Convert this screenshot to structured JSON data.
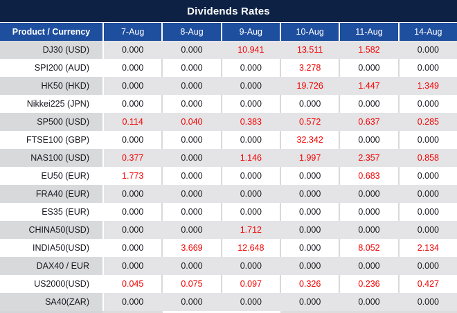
{
  "title": "Dividends Rates",
  "table": {
    "header": [
      "Product / Currency",
      "7-Aug",
      "8-Aug",
      "9-Aug",
      "10-Aug",
      "11-Aug",
      "14-Aug"
    ],
    "rows": [
      {
        "product": "DJ30 (USD)",
        "values": [
          "0.000",
          "0.000",
          "10.941",
          "13.511",
          "1.582",
          "0.000"
        ]
      },
      {
        "product": "SPI200 (AUD)",
        "values": [
          "0.000",
          "0.000",
          "0.000",
          "3.278",
          "0.000",
          "0.000"
        ]
      },
      {
        "product": "HK50 (HKD)",
        "values": [
          "0.000",
          "0.000",
          "0.000",
          "19.726",
          "1.447",
          "1.349"
        ]
      },
      {
        "product": "Nikkei225 (JPN)",
        "values": [
          "0.000",
          "0.000",
          "0.000",
          "0.000",
          "0.000",
          "0.000"
        ]
      },
      {
        "product": "SP500 (USD)",
        "values": [
          "0.114",
          "0.040",
          "0.383",
          "0.572",
          "0.637",
          "0.285"
        ]
      },
      {
        "product": "FTSE100 (GBP)",
        "values": [
          "0.000",
          "0.000",
          "0.000",
          "32.342",
          "0.000",
          "0.000"
        ]
      },
      {
        "product": "NAS100 (USD)",
        "values": [
          "0.377",
          "0.000",
          "1.146",
          "1.997",
          "2.357",
          "0.858"
        ]
      },
      {
        "product": "EU50 (EUR)",
        "values": [
          "1.773",
          "0.000",
          "0.000",
          "0.000",
          "0.683",
          "0.000"
        ]
      },
      {
        "product": "FRA40 (EUR)",
        "values": [
          "0.000",
          "0.000",
          "0.000",
          "0.000",
          "0.000",
          "0.000"
        ]
      },
      {
        "product": "ES35 (EUR)",
        "values": [
          "0.000",
          "0.000",
          "0.000",
          "0.000",
          "0.000",
          "0.000"
        ]
      },
      {
        "product": "CHINA50(USD)",
        "values": [
          "0.000",
          "0.000",
          "1.712",
          "0.000",
          "0.000",
          "0.000"
        ]
      },
      {
        "product": "INDIA50(USD)",
        "values": [
          "0.000",
          "3.669",
          "12.648",
          "0.000",
          "8.052",
          "2.134"
        ]
      },
      {
        "product": "DAX40 / EUR",
        "values": [
          "0.000",
          "0.000",
          "0.000",
          "0.000",
          "0.000",
          "0.000"
        ]
      },
      {
        "product": "US2000(USD)",
        "values": [
          "0.045",
          "0.075",
          "0.097",
          "0.326",
          "0.236",
          "0.427"
        ]
      },
      {
        "product": "SA40(ZAR)",
        "values": [
          "0.000",
          "0.000",
          "0.000",
          "0.000",
          "0.000",
          "0.000"
        ]
      }
    ]
  },
  "colors": {
    "title_bg": "#0d2145",
    "header_bg": "#1e4e9e",
    "header_text": "#ffffff",
    "row_bg": "#ffffff",
    "row_alt_bg": "#e4e4e6",
    "row_alt_product_bg": "#d8d9db",
    "text": "#17171f",
    "highlight": "#f40000"
  }
}
